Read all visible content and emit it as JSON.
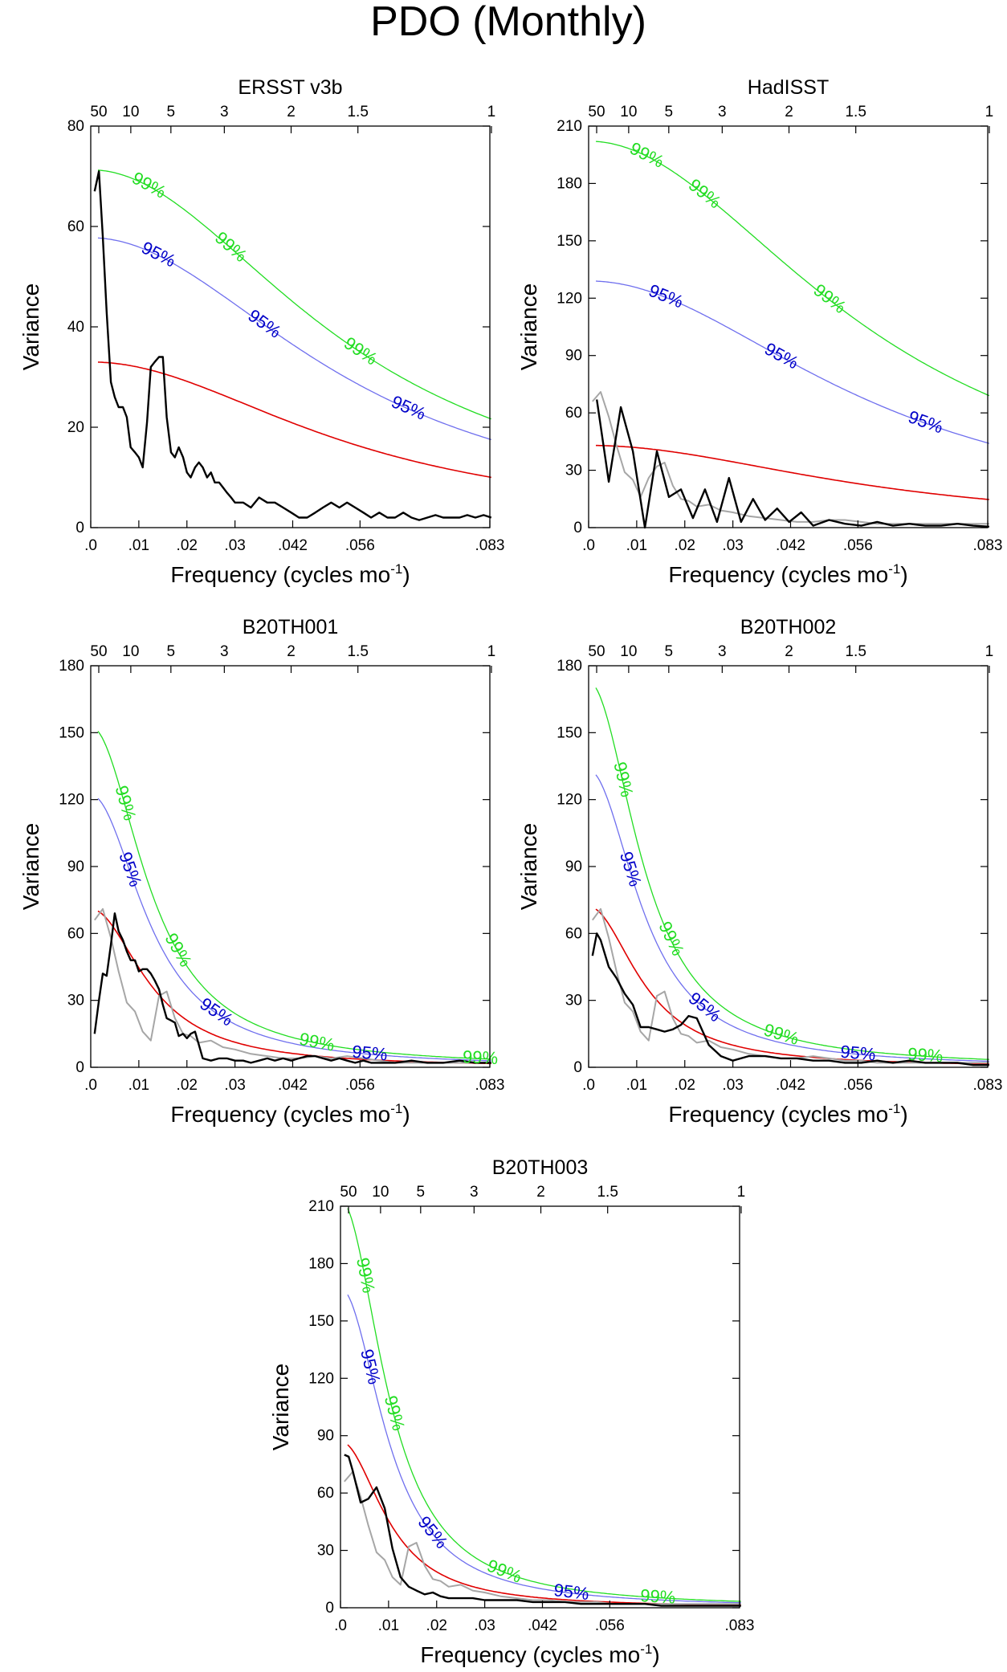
{
  "figure": {
    "title": "PDO (Monthly)",
    "background": "#ffffff",
    "colors": {
      "spectrum": "#000000",
      "obs_spectrum": "#a6a6a6",
      "red_noise": "#e00000",
      "conf95": "#6f6fee",
      "conf99": "#22dd22",
      "label95": "#0000c8",
      "label99": "#22dd22"
    },
    "shared_axes": {
      "xlabel": "Frequency (cycles mo",
      "xlabel_sup": "-1",
      "xlabel_close": ")",
      "ylabel": "Variance",
      "xlim": [
        0,
        0.083
      ],
      "bottom_ticks": [
        {
          "value": 0,
          "label": ".0"
        },
        {
          "value": 0.01,
          "label": ".01"
        },
        {
          "value": 0.02,
          "label": ".02"
        },
        {
          "value": 0.03,
          "label": ".03"
        },
        {
          "value": 0.042,
          "label": ".042"
        },
        {
          "value": 0.056,
          "label": ".056"
        },
        {
          "value": 0.083,
          "label": ".083"
        }
      ],
      "top_ticks": [
        {
          "value": 0.00167,
          "label": "50"
        },
        {
          "value": 0.00833,
          "label": "10"
        },
        {
          "value": 0.01667,
          "label": "5"
        },
        {
          "value": 0.02778,
          "label": "3"
        },
        {
          "value": 0.04167,
          "label": "2"
        },
        {
          "value": 0.05556,
          "label": "1.5"
        },
        {
          "value": 0.08333,
          "label": "1"
        }
      ]
    }
  },
  "chart_data": [
    {
      "type": "line",
      "title": "ERSST v3b",
      "xlabel": "Frequency (cycles mo-1)",
      "ylabel": "Variance",
      "ylim": [
        0,
        80
      ],
      "yticks": [
        0,
        20,
        40,
        60,
        80
      ],
      "ar1": {
        "base": 33,
        "decay": 0.055
      },
      "mult95": 1.75,
      "mult99": 2.16,
      "labels95": [
        "95%",
        "95%",
        "95%"
      ],
      "labels99": [
        "99%",
        "99%",
        "99%"
      ],
      "label95_x": [
        0.014,
        0.036,
        0.066
      ],
      "label99_x": [
        0.012,
        0.029,
        0.056
      ],
      "series": [
        {
          "name": "spectrum",
          "role": "main",
          "x": [
            0.0008,
            0.0017,
            0.0025,
            0.0033,
            0.0042,
            0.005,
            0.0058,
            0.0067,
            0.0075,
            0.0083,
            0.0092,
            0.01,
            0.0108,
            0.0117,
            0.0125,
            0.0133,
            0.0142,
            0.015,
            0.0158,
            0.0167,
            0.0175,
            0.0183,
            0.0192,
            0.02,
            0.0208,
            0.0217,
            0.0225,
            0.0233,
            0.0242,
            0.025,
            0.0258,
            0.0267,
            0.0275,
            0.0283,
            0.0292,
            0.03,
            0.0317,
            0.0333,
            0.035,
            0.0367,
            0.0383,
            0.04,
            0.0417,
            0.0433,
            0.045,
            0.0467,
            0.0483,
            0.05,
            0.0517,
            0.0533,
            0.055,
            0.0567,
            0.0583,
            0.06,
            0.0617,
            0.0633,
            0.065,
            0.0667,
            0.0683,
            0.07,
            0.0717,
            0.0733,
            0.075,
            0.0767,
            0.0783,
            0.08,
            0.0817,
            0.0833
          ],
          "values": [
            67,
            71,
            58,
            43,
            29,
            26,
            24,
            24,
            22,
            16,
            15,
            14,
            12,
            21,
            32,
            33,
            34,
            34,
            22,
            15,
            14,
            16,
            14,
            11,
            10,
            12,
            13,
            12,
            10,
            11,
            9,
            9,
            8,
            7,
            6,
            5,
            5,
            4,
            6,
            5,
            5,
            4,
            3,
            2,
            2,
            3,
            4,
            5,
            4,
            5,
            4,
            3,
            2,
            3,
            2,
            2,
            3,
            2,
            1.5,
            2,
            2.5,
            2,
            2,
            2,
            2.5,
            2,
            2.5,
            2
          ]
        }
      ]
    },
    {
      "type": "line",
      "title": "HadISST",
      "xlabel": "Frequency (cycles mo-1)",
      "ylabel": "Variance",
      "ylim": [
        0,
        210
      ],
      "yticks": [
        0,
        30,
        60,
        90,
        120,
        150,
        180,
        210
      ],
      "ar1": {
        "base": 43,
        "decay": 0.06
      },
      "mult95": 3.0,
      "mult99": 4.7,
      "labels95": [
        "95%",
        "95%",
        "95%"
      ],
      "labels99": [
        "99%",
        "99%",
        "99%"
      ],
      "label95_x": [
        0.016,
        0.04,
        0.07
      ],
      "label99_x": [
        0.012,
        0.024,
        0.05
      ],
      "series": [
        {
          "name": "observed reference",
          "role": "reference",
          "x": [
            0.0008,
            0.0025,
            0.0042,
            0.0058,
            0.0075,
            0.0092,
            0.0108,
            0.0125,
            0.0142,
            0.0158,
            0.0175,
            0.0192,
            0.0208,
            0.0225,
            0.025,
            0.0275,
            0.03,
            0.0333,
            0.0367,
            0.04,
            0.0433,
            0.0467,
            0.05,
            0.0533,
            0.0567,
            0.06,
            0.0633,
            0.0667,
            0.07,
            0.0733,
            0.0767,
            0.08,
            0.0833
          ],
          "values": [
            66,
            71,
            58,
            43,
            29,
            25,
            16,
            26,
            32,
            34,
            22,
            15,
            14,
            11,
            12,
            9,
            8,
            6,
            5,
            4,
            3,
            3,
            4,
            4,
            3,
            2,
            2,
            2,
            2,
            2,
            2,
            2,
            2
          ]
        },
        {
          "name": "spectrum",
          "role": "main",
          "x": [
            0.0017,
            0.0042,
            0.0067,
            0.0092,
            0.0117,
            0.0142,
            0.0167,
            0.0192,
            0.0217,
            0.0242,
            0.0267,
            0.0292,
            0.0317,
            0.0342,
            0.0367,
            0.0392,
            0.0417,
            0.0442,
            0.0467,
            0.05,
            0.0533,
            0.0567,
            0.06,
            0.0633,
            0.0667,
            0.07,
            0.0733,
            0.0767,
            0.08,
            0.0833
          ],
          "values": [
            67,
            24,
            63,
            40,
            0,
            40,
            16,
            20,
            5,
            20,
            3,
            26,
            3,
            15,
            4,
            10,
            3,
            8,
            1,
            4,
            2,
            1,
            3,
            1,
            2,
            1,
            1,
            2,
            1,
            0.5
          ]
        }
      ]
    },
    {
      "type": "line",
      "title": "B20TH001",
      "xlabel": "Frequency (cycles mo-1)",
      "ylabel": "Variance",
      "ylim": [
        0,
        180
      ],
      "yticks": [
        0,
        30,
        60,
        90,
        120,
        150,
        180
      ],
      "ar1": {
        "base": 71,
        "decay": 0.013
      },
      "mult95": 1.72,
      "mult99": 2.15,
      "labels95": [
        "95%",
        "95%",
        "95%"
      ],
      "labels99": [
        "99%",
        "99%",
        "99%",
        "99%"
      ],
      "label95_x": [
        0.008,
        0.026,
        0.058
      ],
      "label99_x": [
        0.007,
        0.018,
        0.047,
        0.081
      ],
      "series": [
        {
          "name": "observed reference",
          "role": "reference",
          "x": [
            0.0008,
            0.0025,
            0.0042,
            0.0058,
            0.0075,
            0.0092,
            0.0108,
            0.0125,
            0.0142,
            0.0158,
            0.0175,
            0.0192,
            0.0208,
            0.0225,
            0.025,
            0.0275,
            0.03,
            0.0333,
            0.0367,
            0.04,
            0.0433,
            0.0467,
            0.05,
            0.0533,
            0.0567,
            0.06,
            0.0633,
            0.0667,
            0.07,
            0.0733,
            0.0767,
            0.08,
            0.0833
          ],
          "values": [
            66,
            71,
            58,
            43,
            29,
            25,
            16,
            12,
            32,
            34,
            22,
            15,
            14,
            11,
            12,
            9,
            8,
            6,
            5,
            4,
            4,
            5,
            4,
            5,
            4,
            3,
            2,
            2,
            2,
            2,
            2,
            2,
            2
          ]
        },
        {
          "name": "spectrum",
          "role": "main",
          "x": [
            0.0008,
            0.0017,
            0.0025,
            0.0033,
            0.0042,
            0.005,
            0.0058,
            0.0067,
            0.0075,
            0.0083,
            0.0092,
            0.01,
            0.0108,
            0.0117,
            0.0125,
            0.0133,
            0.0142,
            0.015,
            0.0158,
            0.0167,
            0.0175,
            0.0183,
            0.0192,
            0.02,
            0.0208,
            0.0217,
            0.0225,
            0.0233,
            0.025,
            0.0267,
            0.0283,
            0.03,
            0.0317,
            0.0333,
            0.035,
            0.0367,
            0.0383,
            0.04,
            0.0417,
            0.0433,
            0.045,
            0.0467,
            0.0483,
            0.05,
            0.0517,
            0.0533,
            0.055,
            0.0567,
            0.0583,
            0.06,
            0.0633,
            0.0667,
            0.07,
            0.0733,
            0.0767,
            0.08,
            0.0833
          ],
          "values": [
            15,
            30,
            42,
            41,
            55,
            69,
            61,
            57,
            52,
            48,
            48,
            43,
            44,
            44,
            42,
            39,
            35,
            28,
            22,
            21,
            20,
            14,
            15,
            13,
            15,
            16,
            10,
            4,
            3,
            4,
            4,
            3,
            3,
            2,
            3,
            4,
            3,
            4,
            3,
            4,
            5,
            5,
            4,
            3,
            4,
            3,
            2,
            3,
            2,
            2,
            2,
            3,
            2,
            2,
            3,
            2,
            2
          ]
        }
      ]
    },
    {
      "type": "line",
      "title": "B20TH002",
      "xlabel": "Frequency (cycles mo-1)",
      "ylabel": "Variance",
      "ylim": [
        0,
        180
      ],
      "yticks": [
        0,
        30,
        60,
        90,
        120,
        150,
        180
      ],
      "ar1": {
        "base": 72,
        "decay": 0.012
      },
      "mult95": 1.85,
      "mult99": 2.4,
      "labels95": [
        "95%",
        "95%",
        "95%"
      ],
      "labels99": [
        "99%",
        "99%",
        "99%",
        "99%"
      ],
      "label95_x": [
        0.0085,
        0.024,
        0.056
      ],
      "label99_x": [
        0.007,
        0.017,
        0.04,
        0.07
      ],
      "series": [
        {
          "name": "observed reference",
          "role": "reference",
          "x": [
            0.0008,
            0.0025,
            0.0042,
            0.0058,
            0.0075,
            0.0092,
            0.0108,
            0.0125,
            0.0142,
            0.0158,
            0.0175,
            0.0192,
            0.0208,
            0.0225,
            0.025,
            0.0275,
            0.03,
            0.0333,
            0.0367,
            0.04,
            0.0433,
            0.0467,
            0.05,
            0.0533,
            0.0567,
            0.06,
            0.0633,
            0.0667,
            0.07,
            0.0733,
            0.0767,
            0.08,
            0.0833
          ],
          "values": [
            66,
            71,
            58,
            43,
            29,
            25,
            16,
            12,
            32,
            34,
            22,
            15,
            14,
            11,
            12,
            9,
            8,
            6,
            5,
            4,
            4,
            5,
            4,
            3,
            3,
            2,
            2,
            2,
            2,
            2,
            2,
            2,
            2
          ]
        },
        {
          "name": "spectrum",
          "role": "main",
          "x": [
            0.0008,
            0.0017,
            0.0025,
            0.0042,
            0.0058,
            0.0075,
            0.0092,
            0.0108,
            0.0125,
            0.0142,
            0.0158,
            0.0175,
            0.0192,
            0.0208,
            0.0225,
            0.025,
            0.0275,
            0.03,
            0.0333,
            0.0367,
            0.04,
            0.0433,
            0.0467,
            0.05,
            0.0533,
            0.0567,
            0.06,
            0.0633,
            0.0667,
            0.07,
            0.0733,
            0.0767,
            0.08,
            0.0833
          ],
          "values": [
            50,
            60,
            57,
            45,
            40,
            33,
            28,
            18,
            18,
            17,
            16,
            17,
            19,
            23,
            22,
            10,
            5,
            3,
            5,
            5,
            4,
            4,
            3,
            3,
            2,
            2,
            3,
            2,
            3,
            2,
            2,
            2,
            1,
            1
          ]
        }
      ]
    },
    {
      "type": "line",
      "title": "B20TH003",
      "xlabel": "Frequency (cycles mo-1)",
      "ylabel": "Variance",
      "ylim": [
        0,
        210
      ],
      "yticks": [
        0,
        30,
        60,
        90,
        120,
        150,
        180,
        210
      ],
      "ar1": {
        "base": 87,
        "decay": 0.0105
      },
      "mult95": 1.92,
      "mult99": 2.45,
      "labels95": [
        "95%",
        "95%",
        "95%"
      ],
      "labels99": [
        "99%",
        "99%",
        "99%",
        "99%"
      ],
      "label95_x": [
        0.006,
        0.019,
        0.048
      ],
      "label99_x": [
        0.005,
        0.011,
        0.034,
        0.066
      ],
      "series": [
        {
          "name": "observed reference",
          "role": "reference",
          "x": [
            0.0008,
            0.0025,
            0.0042,
            0.0058,
            0.0075,
            0.0092,
            0.0108,
            0.0125,
            0.0142,
            0.0158,
            0.0175,
            0.0192,
            0.0208,
            0.0225,
            0.025,
            0.0275,
            0.03,
            0.0333,
            0.0367,
            0.04,
            0.0433,
            0.0467,
            0.05,
            0.0533,
            0.0567,
            0.06,
            0.0633,
            0.0667,
            0.07,
            0.0733,
            0.0767,
            0.08,
            0.0833
          ],
          "values": [
            66,
            71,
            58,
            43,
            29,
            25,
            16,
            12,
            32,
            34,
            22,
            15,
            14,
            11,
            12,
            9,
            8,
            6,
            5,
            4,
            4,
            3,
            3,
            3,
            2,
            2,
            2,
            2,
            2,
            2,
            2,
            2,
            2
          ]
        },
        {
          "name": "spectrum",
          "role": "main",
          "x": [
            0.0008,
            0.0017,
            0.0025,
            0.0042,
            0.0058,
            0.0075,
            0.0092,
            0.0108,
            0.0125,
            0.0142,
            0.0158,
            0.0175,
            0.0192,
            0.0208,
            0.0225,
            0.025,
            0.0275,
            0.03,
            0.0333,
            0.0367,
            0.04,
            0.0433,
            0.0467,
            0.05,
            0.0533,
            0.0567,
            0.06,
            0.0633,
            0.0667,
            0.07,
            0.0733,
            0.0767,
            0.08,
            0.0833
          ],
          "values": [
            80,
            79,
            72,
            55,
            57,
            63,
            52,
            31,
            16,
            11,
            9,
            7,
            8,
            6,
            5,
            5,
            5,
            4,
            4,
            4,
            3,
            3,
            3,
            2,
            2,
            2,
            2,
            2,
            1,
            1,
            1,
            1,
            1,
            1
          ]
        }
      ]
    }
  ]
}
